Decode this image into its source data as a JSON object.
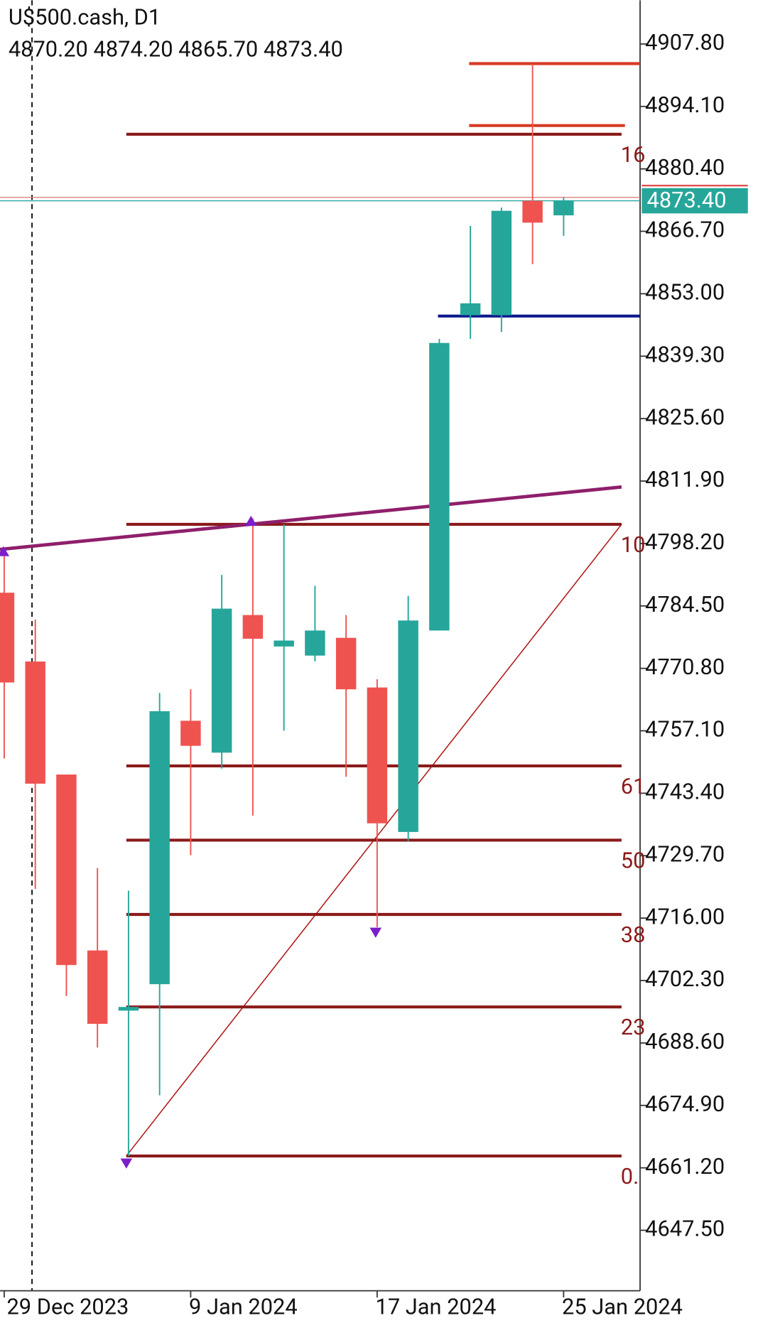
{
  "chart_data": {
    "type": "candlestick",
    "title": "U$500.cash, D1",
    "subtitle": "4870.20 4874.20 4865.70 4873.40",
    "categories": [
      "29 Dec 2023",
      null,
      null,
      null,
      null,
      null,
      "9 Jan 2024",
      null,
      null,
      null,
      null,
      null,
      "17 Jan 2024",
      null,
      null,
      null,
      null,
      null,
      "25 Jan 2024"
    ],
    "up_color": "#26a69a",
    "down_color": "#ef5350",
    "open": [
      4787.4,
      4772.3,
      4747.5,
      4708.9,
      4695.7,
      4701.5,
      4759.3,
      4752.3,
      4782.5,
      4775.6,
      4773.6,
      4777.5,
      4766.6,
      4734.9,
      4779.1,
      4848.3,
      4848.3,
      4873.4,
      4870.2
    ],
    "high": [
      4795.4,
      4781.5,
      4747.5,
      4727.0,
      4722.0,
      4765.4,
      4766.2,
      4791.3,
      4803.7,
      4802.4,
      4788.9,
      4782.5,
      4768.4,
      4786.7,
      4843.1,
      4867.9,
      4871.9,
      4903.4,
      4874.2
    ],
    "low": [
      4751.0,
      4722.4,
      4698.9,
      4687.6,
      4663.8,
      4677.1,
      4729.8,
      4748.8,
      4738.5,
      4757.1,
      4772.3,
      4747.0,
      4714.0,
      4732.9,
      4779.1,
      4843.1,
      4844.6,
      4859.5,
      4865.7
    ],
    "close": [
      4767.7,
      4745.5,
      4705.7,
      4692.8,
      4696.5,
      4761.4,
      4753.8,
      4783.9,
      4777.3,
      4776.9,
      4779.1,
      4766.2,
      4736.8,
      4781.3,
      4842.2,
      4850.9,
      4871.2,
      4868.6,
      4873.4
    ],
    "ylim": [
      4634.6,
      4917.4
    ],
    "yticks": [
      {
        "value": 4907.8,
        "label": "4907.80"
      },
      {
        "value": 4894.1,
        "label": "4894.10"
      },
      {
        "value": 4880.4,
        "label": "4880.40"
      },
      {
        "value": 4866.7,
        "label": "4866.70"
      },
      {
        "value": 4853.0,
        "label": "4853.00"
      },
      {
        "value": 4839.3,
        "label": "4839.30"
      },
      {
        "value": 4825.6,
        "label": "4825.60"
      },
      {
        "value": 4811.9,
        "label": "4811.90"
      },
      {
        "value": 4798.2,
        "label": "4798.20"
      },
      {
        "value": 4784.5,
        "label": "4784.50"
      },
      {
        "value": 4770.8,
        "label": "4770.80"
      },
      {
        "value": 4757.1,
        "label": "4757.10"
      },
      {
        "value": 4743.4,
        "label": "4743.40"
      },
      {
        "value": 4729.7,
        "label": "4729.70"
      },
      {
        "value": 4716.0,
        "label": "4716.00"
      },
      {
        "value": 4702.3,
        "label": "4702.30"
      },
      {
        "value": 4688.6,
        "label": "4688.60"
      },
      {
        "value": 4674.9,
        "label": "4674.90"
      },
      {
        "value": 4661.2,
        "label": "4661.20"
      },
      {
        "value": 4647.5,
        "label": "4647.50"
      }
    ],
    "last_price": {
      "value": 4873.4,
      "label": "4873.40"
    },
    "fib_color": "#8b1a1a",
    "fib_levels": [
      {
        "price": 4663.8,
        "label": "0."
      },
      {
        "price": 4696.5,
        "label": "23"
      },
      {
        "price": 4716.8,
        "label": "38"
      },
      {
        "price": 4733.1,
        "label": "50"
      },
      {
        "price": 4749.4,
        "label": "61"
      },
      {
        "price": 4802.4,
        "label": "10"
      },
      {
        "price": 4888.0,
        "label": "16"
      }
    ],
    "trendline": {
      "color": "#8e1f6b",
      "values": [
        4796.9,
        4810.6
      ]
    },
    "support_line": {
      "color": "#0d1a8c",
      "value": 4848.1
    },
    "resistance_lines": {
      "color": "#d63a24",
      "values": [
        4903.5,
        4889.9
      ]
    }
  }
}
